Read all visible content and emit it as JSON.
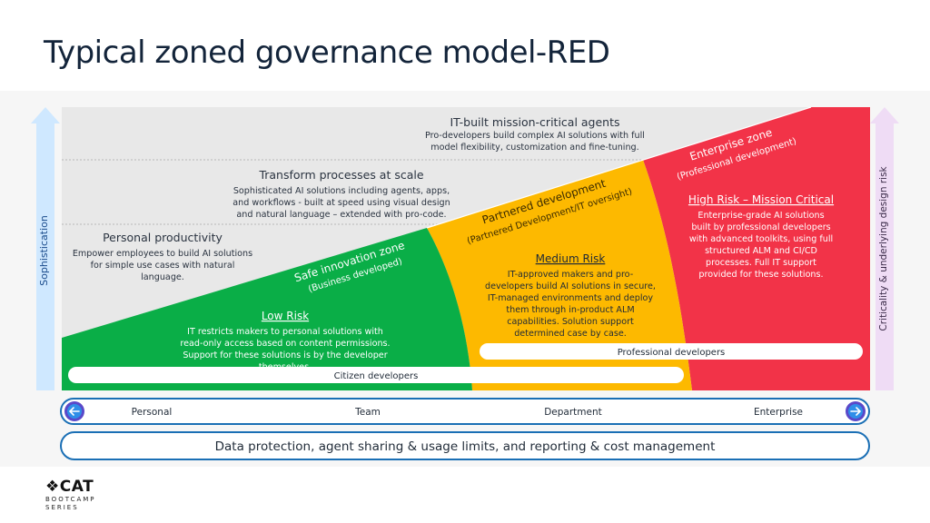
{
  "title": "Typical zoned governance model-RED",
  "left_axis_label": "Sophistication",
  "right_axis_label": "Criticality & underlying design risk",
  "tiers": {
    "it_built": {
      "heading": "IT-built mission-critical agents",
      "lines": [
        "Pro-developers build complex AI solutions with full",
        "model flexibility, customization and fine-tuning."
      ]
    },
    "transform": {
      "heading": "Transform processes at scale",
      "lines": [
        "Sophisticated AI solutions including agents, apps,",
        "and workflows - built at speed using visual design",
        "and natural language – extended with pro-code."
      ]
    },
    "personal": {
      "heading": "Personal productivity",
      "lines": [
        "Empower employees to build AI solutions",
        "for simple use cases with natural",
        "language."
      ]
    }
  },
  "zones": {
    "safe": {
      "name": "Safe innovation zone",
      "sub": "(Business developed)",
      "risk": "Low Risk",
      "lines": [
        "IT restricts makers to personal solutions with",
        "read-only access based on content permissions.",
        "Support for these solutions is by the developer",
        "themselves."
      ]
    },
    "partnered": {
      "name": "Partnered development",
      "sub": "(Partnered Development/IT oversight)",
      "risk": "Medium Risk",
      "lines": [
        "IT-approved makers and pro-",
        "developers build AI solutions in secure,",
        "IT-managed environments and deploy",
        "them through in-product ALM",
        "capabilities. Solution support",
        "determined case by case."
      ]
    },
    "enterprise": {
      "name": "Enterprise zone",
      "sub": "(Professional development)",
      "risk": "High Risk – Mission Critical",
      "lines": [
        "Enterprise-grade AI solutions",
        "built by professional developers",
        "with advanced toolkits, using full",
        "structured ALM and CI/CD",
        "processes. Full IT support",
        "provided for these solutions."
      ]
    }
  },
  "pills": {
    "citizen": "Citizen developers",
    "professional": "Professional developers"
  },
  "scale": [
    "Personal",
    "Team",
    "Department",
    "Enterprise"
  ],
  "footer_bar": "Data protection, agent sharing & usage limits, and reporting & cost management",
  "logo": {
    "mark": "CAT",
    "sub_lines": [
      "BOOTCAMP",
      "SERIES"
    ]
  },
  "colors": {
    "safe": "#0aae47",
    "partnered": "#fdb900",
    "enterprise": "#f23348",
    "grey_area": "#e8e8e8",
    "left_arrow": "#cfe8ff",
    "right_arrow": "#efdcf5",
    "border_blue": "#1a6fb5",
    "link_blue": "#1a5fb4"
  }
}
